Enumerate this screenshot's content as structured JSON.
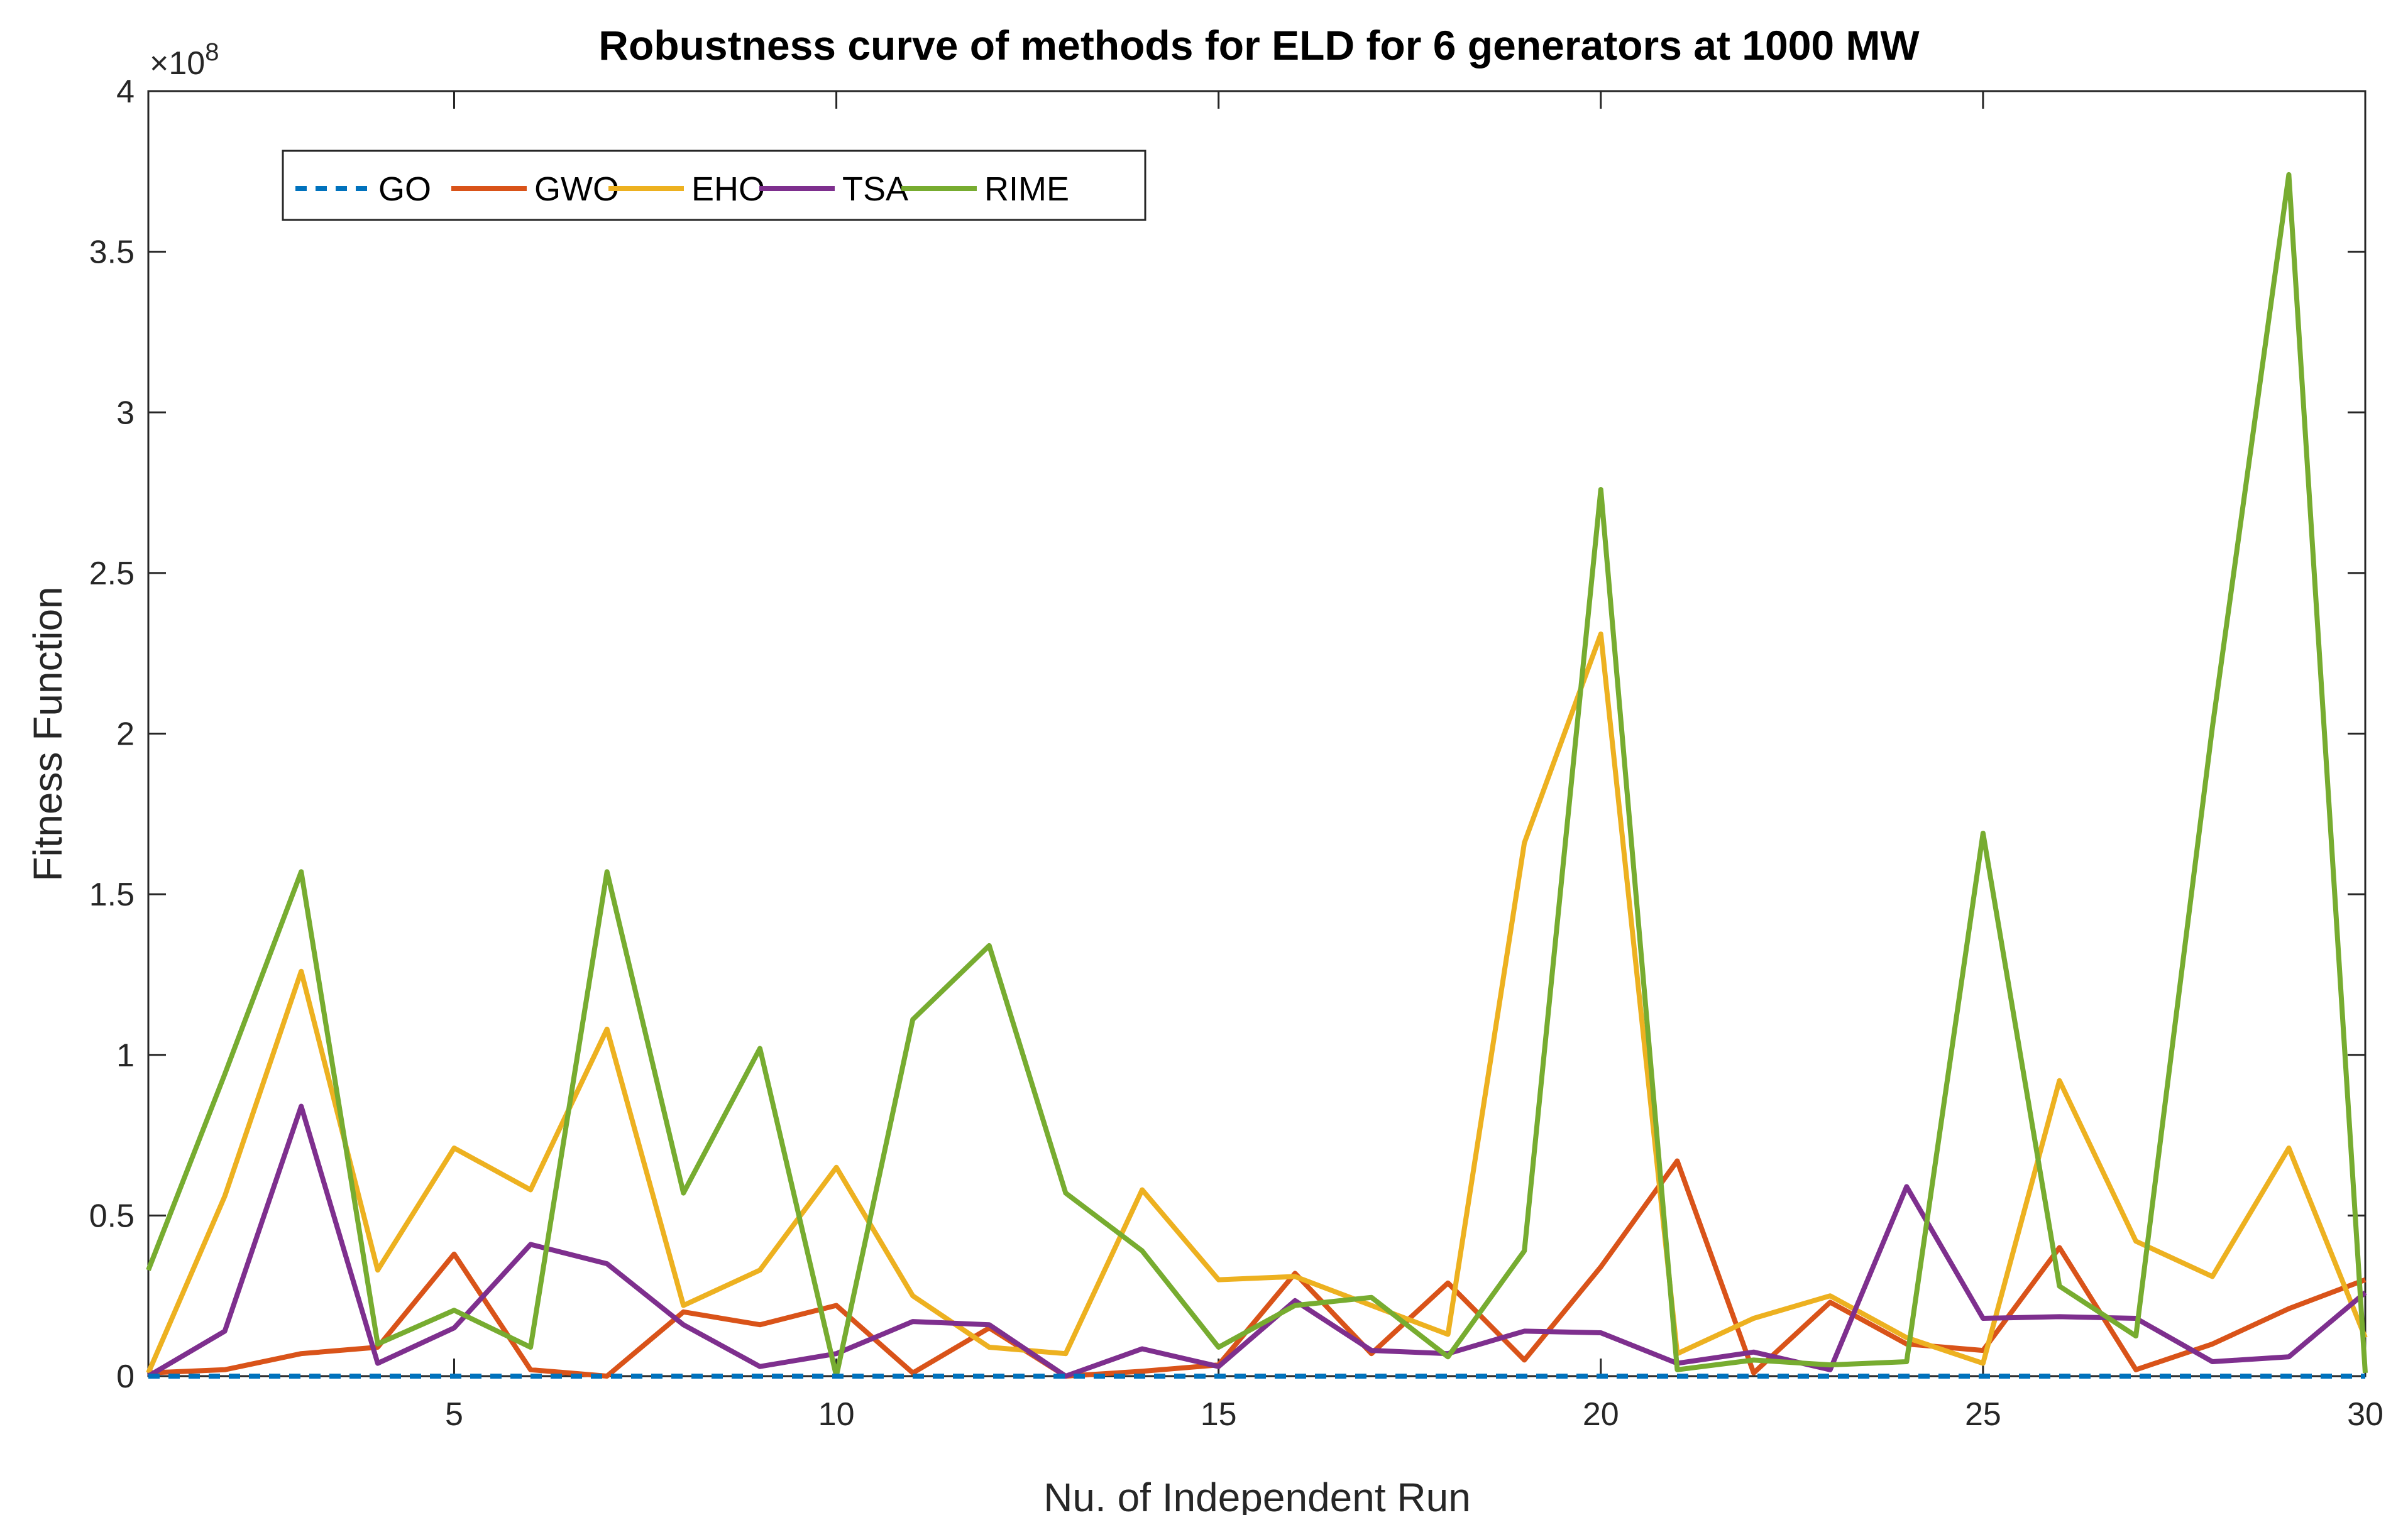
{
  "chart_data": {
    "type": "line",
    "title": "Robustness curve of methods for ELD for 6 generators at  1000 MW",
    "xlabel": "Nu. of Independent Run",
    "ylabel": "Fitness Function",
    "xlim": [
      1,
      30
    ],
    "ylim": [
      0,
      400000000
    ],
    "xticks": [
      5,
      10,
      15,
      20,
      25,
      30
    ],
    "xtick_labels": [
      "5",
      "10",
      "15",
      "20",
      "25",
      "30"
    ],
    "yticks": [
      0,
      50000000,
      100000000,
      150000000,
      200000000,
      250000000,
      300000000,
      350000000,
      400000000
    ],
    "ytick_labels": [
      "0",
      "0.5",
      "1",
      "1.5",
      "2",
      "2.5",
      "3",
      "3.5",
      "4"
    ],
    "y_exponent_label": "×10",
    "y_exponent_power": "8",
    "legend_location": "top-left",
    "grid": false,
    "x": [
      1,
      2,
      3,
      4,
      5,
      6,
      7,
      8,
      9,
      10,
      11,
      12,
      13,
      14,
      15,
      16,
      17,
      18,
      19,
      20,
      21,
      22,
      23,
      24,
      25,
      26,
      27,
      28,
      29,
      30
    ],
    "series": [
      {
        "name": "GO",
        "color": "#0072BD",
        "dashed": true,
        "values": [
          0,
          0,
          0,
          0,
          0,
          0,
          0,
          0,
          0,
          0,
          0,
          0,
          0,
          0,
          0,
          0,
          0,
          0,
          0,
          0,
          0,
          0,
          0,
          0,
          0,
          0,
          0,
          0,
          0,
          0
        ]
      },
      {
        "name": "GWO",
        "color": "#D95319",
        "dashed": false,
        "values": [
          1000000,
          2000000,
          7000000,
          9000000,
          38000000,
          2000000,
          0,
          20000000,
          16000000,
          22000000,
          1000000,
          15000000,
          0,
          1500000,
          3500000,
          32000000,
          7000000,
          29000000,
          5000000,
          34000000,
          67000000,
          1000000,
          23000000,
          10000000,
          8000000,
          40000000,
          2000000,
          10000000,
          21000000,
          30000000
        ]
      },
      {
        "name": "EHO",
        "color": "#EDB120",
        "dashed": false,
        "values": [
          1000000,
          56000000,
          126000000,
          33000000,
          71000000,
          58000000,
          108000000,
          22000000,
          33000000,
          65000000,
          25000000,
          9000000,
          7000000,
          58000000,
          30000000,
          31000000,
          22000000,
          13000000,
          166000000,
          231000000,
          7000000,
          18000000,
          25000000,
          12000000,
          4000000,
          92000000,
          42000000,
          31000000,
          71000000,
          12000000
        ]
      },
      {
        "name": "TSA",
        "color": "#7E2F8E",
        "dashed": false,
        "values": [
          0,
          14000000,
          84000000,
          4000000,
          15000000,
          41000000,
          35000000,
          16000000,
          3000000,
          7000000,
          17000000,
          16000000,
          0,
          8500000,
          3000000,
          23500000,
          8000000,
          7000000,
          14000000,
          13500000,
          4000000,
          7500000,
          2000000,
          59000000,
          18000000,
          18500000,
          18000000,
          4500000,
          6000000,
          26000000
        ]
      },
      {
        "name": "RIME",
        "color": "#77AC30",
        "dashed": false,
        "values": [
          33000000,
          94000000,
          157000000,
          10000000,
          20500000,
          9000000,
          157000000,
          57000000,
          102000000,
          0,
          111000000,
          134000000,
          57000000,
          39000000,
          9000000,
          22000000,
          24500000,
          6000000,
          39000000,
          276000000,
          2000000,
          5000000,
          3500000,
          4500000,
          169000000,
          28000000,
          12500000,
          202000000,
          374000000,
          1000000
        ]
      }
    ]
  }
}
